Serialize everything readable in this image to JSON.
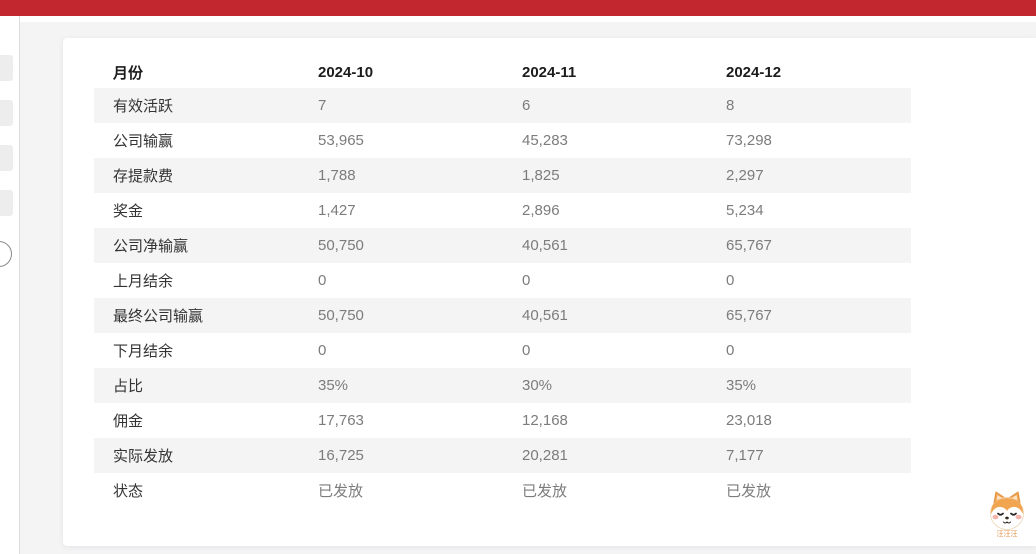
{
  "topbar": {
    "color": "#c2262e"
  },
  "table": {
    "columns": [
      "月份",
      "2024-10",
      "2024-11",
      "2024-12"
    ],
    "rows": [
      {
        "label": "有效活跃",
        "values": [
          "7",
          "6",
          "8"
        ]
      },
      {
        "label": "公司输赢",
        "values": [
          "53,965",
          "45,283",
          "73,298"
        ]
      },
      {
        "label": "存提款费",
        "values": [
          "1,788",
          "1,825",
          "2,297"
        ]
      },
      {
        "label": "奖金",
        "values": [
          "1,427",
          "2,896",
          "5,234"
        ]
      },
      {
        "label": "公司净输赢",
        "values": [
          "50,750",
          "40,561",
          "65,767"
        ]
      },
      {
        "label": "上月结余",
        "values": [
          "0",
          "0",
          "0"
        ]
      },
      {
        "label": "最终公司输赢",
        "values": [
          "50,750",
          "40,561",
          "65,767"
        ]
      },
      {
        "label": "下月结余",
        "values": [
          "0",
          "0",
          "0"
        ]
      },
      {
        "label": "占比",
        "values": [
          "35%",
          "30%",
          "35%"
        ]
      },
      {
        "label": "佣金",
        "values": [
          "17,763",
          "12,168",
          "23,018"
        ]
      },
      {
        "label": "实际发放",
        "values": [
          "16,725",
          "20,281",
          "7,177"
        ]
      },
      {
        "label": "状态",
        "values": [
          "已发放",
          "已发放",
          "已发放"
        ]
      }
    ]
  },
  "mascot": {
    "label": "汪汪汪"
  },
  "colors": {
    "accent_red": "#c2262e",
    "row_stripe": "#f4f4f4",
    "page_bg": "#f4f4f5",
    "header_text": "#1c1c1c",
    "label_text": "#333333",
    "value_text": "#7c7c7c",
    "mascot_orange": "#f2a551"
  }
}
